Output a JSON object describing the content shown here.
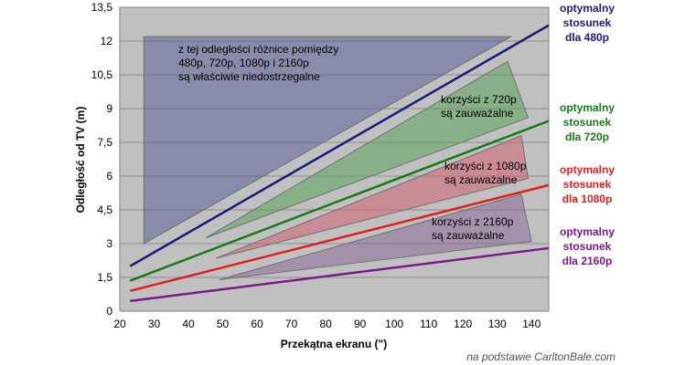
{
  "chart_data": {
    "type": "line",
    "xlabel": "Przekątna ekranu (\")",
    "ylabel": "Odległość od TV (m)",
    "xlim": [
      20,
      145
    ],
    "ylim": [
      0,
      13.5
    ],
    "xticks": [
      20,
      30,
      40,
      50,
      60,
      70,
      80,
      90,
      100,
      110,
      120,
      130,
      140
    ],
    "yticks": [
      "0",
      "1,5",
      "3",
      "4,5",
      "6",
      "7,5",
      "9",
      "10,5",
      "12",
      "13,5"
    ],
    "grid": "horizontal",
    "series": [
      {
        "name": "optymalny stosunek dla 480p",
        "label_lines": [
          "optymalny",
          "stosunek",
          "dla 480p"
        ],
        "color": "#1a1a7a",
        "x": [
          23,
          145
        ],
        "y": [
          2.0,
          12.7
        ]
      },
      {
        "name": "optymalny stosunek dla 720p",
        "label_lines": [
          "optymalny",
          "stosunek",
          "dla 720p"
        ],
        "color": "#1a7a1a",
        "x": [
          23,
          145
        ],
        "y": [
          1.35,
          8.45
        ]
      },
      {
        "name": "optymalny stosunek dla 1080p",
        "label_lines": [
          "optymalny",
          "stosunek",
          "dla 1080p"
        ],
        "color": "#e02020",
        "x": [
          23,
          145
        ],
        "y": [
          0.9,
          5.6
        ]
      },
      {
        "name": "optymalny stosunek dla 2160p",
        "label_lines": [
          "optymalny",
          "stosunek",
          "dla 2160p"
        ],
        "color": "#7a1a8a",
        "x": [
          23,
          145
        ],
        "y": [
          0.45,
          2.8
        ]
      }
    ],
    "regions": [
      {
        "label_lines": [
          "z tej odległości różnice pomiędzy",
          "480p, 720p, 1080p i 2160p",
          "są właściwie niedostrzegalne"
        ],
        "fill": "#5a5f98",
        "opacity": 0.55,
        "points": [
          [
            27,
            3.0
          ],
          [
            27,
            12.2
          ],
          [
            134,
            12.2
          ],
          [
            27,
            3.0
          ]
        ]
      },
      {
        "label_lines": [
          "korzyści z 720p",
          "są zauważalne"
        ],
        "fill": "#5aa05a",
        "opacity": 0.55,
        "points": [
          [
            45,
            3.25
          ],
          [
            133,
            11.1
          ],
          [
            139,
            8.6
          ],
          [
            45,
            3.25
          ]
        ]
      },
      {
        "label_lines": [
          "korzyści z 1080p",
          "są zauważalne"
        ],
        "fill": "#d06070",
        "opacity": 0.55,
        "points": [
          [
            48,
            2.35
          ],
          [
            137,
            7.8
          ],
          [
            139,
            5.9
          ],
          [
            48,
            2.35
          ]
        ]
      },
      {
        "label_lines": [
          "korzyści z 2160p",
          "są zauważalne"
        ],
        "fill": "#8a6a9a",
        "opacity": 0.55,
        "points": [
          [
            49,
            1.4
          ],
          [
            137,
            5.2
          ],
          [
            140,
            3.1
          ],
          [
            49,
            1.4
          ]
        ]
      }
    ]
  },
  "source": "na podstawie CarltonBale.com"
}
